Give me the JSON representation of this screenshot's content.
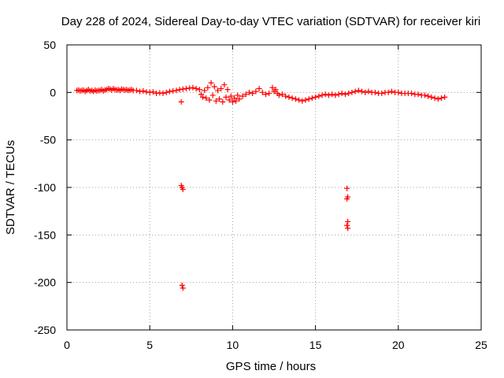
{
  "chart_data": {
    "type": "scatter",
    "title": "Day 228 of 2024, Sidereal Day-to-day VTEC variation (SDTVAR) for receiver kiri",
    "xlabel": "GPS time / hours",
    "ylabel": "SDTVAR / TECUs",
    "xlim": [
      0,
      25
    ],
    "ylim": [
      -250,
      50
    ],
    "xticks": [
      0,
      5,
      10,
      15,
      20,
      25
    ],
    "yticks": [
      50,
      0,
      -50,
      -100,
      -150,
      -200,
      -250
    ],
    "grid": true,
    "marker": "plus",
    "color": "#ff0000",
    "series": [
      {
        "name": "SDTVAR",
        "points": [
          [
            0.6,
            2
          ],
          [
            0.7,
            2.5
          ],
          [
            0.8,
            1.5
          ],
          [
            0.9,
            2
          ],
          [
            1.0,
            2.5
          ],
          [
            1.1,
            1
          ],
          [
            1.2,
            2
          ],
          [
            1.3,
            3
          ],
          [
            1.4,
            1.5
          ],
          [
            1.5,
            2
          ],
          [
            1.6,
            1
          ],
          [
            1.7,
            2.5
          ],
          [
            1.8,
            1.5
          ],
          [
            1.9,
            2
          ],
          [
            2.0,
            2
          ],
          [
            2.1,
            3
          ],
          [
            2.2,
            1.5
          ],
          [
            2.3,
            2.5
          ],
          [
            2.4,
            3
          ],
          [
            2.5,
            4
          ],
          [
            2.6,
            3.5
          ],
          [
            2.7,
            2.5
          ],
          [
            2.8,
            4
          ],
          [
            2.9,
            3
          ],
          [
            3.0,
            2.5
          ],
          [
            3.1,
            3
          ],
          [
            3.2,
            2
          ],
          [
            3.3,
            3.5
          ],
          [
            3.4,
            3
          ],
          [
            3.5,
            2.5
          ],
          [
            3.6,
            3
          ],
          [
            3.7,
            2
          ],
          [
            3.8,
            2.5
          ],
          [
            3.9,
            3
          ],
          [
            4.0,
            2
          ],
          [
            4.2,
            2
          ],
          [
            4.4,
            1
          ],
          [
            4.6,
            1.5
          ],
          [
            4.8,
            0.5
          ],
          [
            5.0,
            0
          ],
          [
            5.2,
            0.5
          ],
          [
            5.4,
            -1
          ],
          [
            5.6,
            -0.5
          ],
          [
            5.8,
            -1
          ],
          [
            6.0,
            0
          ],
          [
            6.2,
            1
          ],
          [
            6.4,
            1.5
          ],
          [
            6.6,
            2
          ],
          [
            6.8,
            3
          ],
          [
            7.0,
            3.5
          ],
          [
            7.2,
            4
          ],
          [
            7.4,
            4.5
          ],
          [
            7.6,
            5
          ],
          [
            7.8,
            4
          ],
          [
            8.0,
            3
          ],
          [
            8.1,
            -2
          ],
          [
            8.2,
            -5
          ],
          [
            8.3,
            2
          ],
          [
            8.4,
            -6
          ],
          [
            8.5,
            5
          ],
          [
            8.6,
            -8
          ],
          [
            8.7,
            10
          ],
          [
            8.8,
            -3
          ],
          [
            8.9,
            6
          ],
          [
            9.0,
            -9
          ],
          [
            9.1,
            2
          ],
          [
            9.2,
            -7
          ],
          [
            9.3,
            4
          ],
          [
            9.4,
            -10
          ],
          [
            9.5,
            8
          ],
          [
            9.6,
            -5
          ],
          [
            9.7,
            3
          ],
          [
            9.8,
            -8
          ],
          [
            9.9,
            -4
          ],
          [
            10.0,
            -10
          ],
          [
            10.1,
            -6
          ],
          [
            10.2,
            -9
          ],
          [
            10.3,
            -3
          ],
          [
            10.4,
            -7
          ],
          [
            10.6,
            -4
          ],
          [
            10.8,
            -2
          ],
          [
            11.0,
            0
          ],
          [
            11.2,
            -1
          ],
          [
            11.4,
            1
          ],
          [
            11.6,
            4
          ],
          [
            11.8,
            0
          ],
          [
            12.0,
            -2
          ],
          [
            12.2,
            -1
          ],
          [
            12.4,
            5
          ],
          [
            12.5,
            1
          ],
          [
            12.6,
            3
          ],
          [
            12.7,
            -1
          ],
          [
            12.8,
            -3
          ],
          [
            13.0,
            -2
          ],
          [
            13.2,
            -4
          ],
          [
            13.4,
            -5
          ],
          [
            13.6,
            -6
          ],
          [
            13.8,
            -7
          ],
          [
            14.0,
            -8
          ],
          [
            14.2,
            -9
          ],
          [
            14.4,
            -8
          ],
          [
            14.6,
            -7
          ],
          [
            14.8,
            -6
          ],
          [
            15.0,
            -5
          ],
          [
            15.2,
            -4
          ],
          [
            15.4,
            -3
          ],
          [
            15.6,
            -2
          ],
          [
            15.8,
            -3
          ],
          [
            16.0,
            -2
          ],
          [
            16.2,
            -3
          ],
          [
            16.4,
            -2
          ],
          [
            16.6,
            -1
          ],
          [
            16.8,
            -2
          ],
          [
            17.0,
            -1
          ],
          [
            17.2,
            0
          ],
          [
            17.4,
            1
          ],
          [
            17.6,
            2
          ],
          [
            17.8,
            1
          ],
          [
            18.0,
            0
          ],
          [
            18.2,
            1
          ],
          [
            18.4,
            0
          ],
          [
            18.6,
            0
          ],
          [
            18.8,
            -1
          ],
          [
            19.0,
            -1
          ],
          [
            19.2,
            0
          ],
          [
            19.4,
            0
          ],
          [
            19.6,
            1
          ],
          [
            19.8,
            0
          ],
          [
            20.0,
            0
          ],
          [
            20.2,
            -1
          ],
          [
            20.4,
            -1
          ],
          [
            20.6,
            -1
          ],
          [
            20.8,
            -1
          ],
          [
            21.0,
            -2
          ],
          [
            21.2,
            -2
          ],
          [
            21.4,
            -3
          ],
          [
            21.6,
            -3
          ],
          [
            21.8,
            -4
          ],
          [
            22.0,
            -5
          ],
          [
            22.2,
            -6
          ],
          [
            22.4,
            -7
          ],
          [
            22.6,
            -6
          ],
          [
            22.8,
            -5
          ],
          [
            6.9,
            -10
          ],
          [
            6.95,
            -100
          ],
          [
            7.0,
            -102
          ],
          [
            6.9,
            -98
          ],
          [
            6.95,
            -203
          ],
          [
            7.0,
            -206
          ],
          [
            16.9,
            -101
          ],
          [
            16.95,
            -110
          ],
          [
            16.9,
            -112
          ],
          [
            16.95,
            -136
          ],
          [
            16.9,
            -140
          ],
          [
            16.95,
            -143
          ]
        ]
      }
    ]
  }
}
